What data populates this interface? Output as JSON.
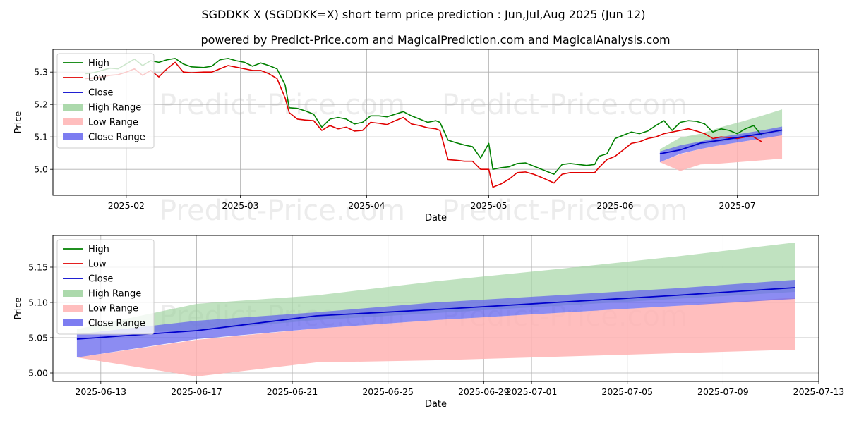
{
  "title_line1": "SGDDKK X (SGDDKK=X) short term price prediction : Jun,Jul,Aug 2025 (Jun 12)",
  "title_line2": "powered by Predict-Price.com and MagicalPrediction.com and MagicalAnalysis.com",
  "watermark": "Predict-Price.com",
  "colors": {
    "high": "#008000",
    "low": "#e00000",
    "close": "#0000cc",
    "high_range": "#9ed29e",
    "low_range": "#ffb3b3",
    "close_range": "#6666ee"
  },
  "chart_data": [
    {
      "type": "line",
      "name": "top-panel",
      "xlabel": "Date",
      "ylabel": "Price",
      "xlim": [
        "2025-01-14",
        "2025-07-21"
      ],
      "ylim": [
        4.92,
        5.37
      ],
      "xticks": [
        {
          "date": "2025-02-01",
          "label": "2025-02"
        },
        {
          "date": "2025-03-01",
          "label": "2025-03"
        },
        {
          "date": "2025-04-01",
          "label": "2025-04"
        },
        {
          "date": "2025-05-01",
          "label": "2025-05"
        },
        {
          "date": "2025-06-01",
          "label": "2025-06"
        },
        {
          "date": "2025-07-01",
          "label": "2025-07"
        }
      ],
      "yticks": [
        {
          "value": 5.0,
          "label": "5.0"
        },
        {
          "value": 5.1,
          "label": "5.1"
        },
        {
          "value": 5.2,
          "label": "5.2"
        },
        {
          "value": 5.3,
          "label": "5.3"
        }
      ],
      "legend": [
        {
          "label": "High",
          "kind": "line",
          "color": "#008000"
        },
        {
          "label": "Low",
          "kind": "line",
          "color": "#e00000"
        },
        {
          "label": "Close",
          "kind": "line",
          "color": "#0000cc"
        },
        {
          "label": "High Range",
          "kind": "patch",
          "color": "#9ed29e"
        },
        {
          "label": "Low Range",
          "kind": "patch",
          "color": "#ffb3b3"
        },
        {
          "label": "Close Range",
          "kind": "patch",
          "color": "#6666ee"
        }
      ],
      "legend_position": "upper-left",
      "grid": true,
      "history_high": [
        [
          "2025-01-22",
          5.295
        ],
        [
          "2025-01-24",
          5.298
        ],
        [
          "2025-01-26",
          5.305
        ],
        [
          "2025-01-28",
          5.312
        ],
        [
          "2025-01-30",
          5.31
        ],
        [
          "2025-02-01",
          5.325
        ],
        [
          "2025-02-03",
          5.34
        ],
        [
          "2025-02-05",
          5.32
        ],
        [
          "2025-02-07",
          5.335
        ],
        [
          "2025-02-09",
          5.33
        ],
        [
          "2025-02-11",
          5.338
        ],
        [
          "2025-02-13",
          5.342
        ],
        [
          "2025-02-15",
          5.325
        ],
        [
          "2025-02-17",
          5.316
        ],
        [
          "2025-02-20",
          5.314
        ],
        [
          "2025-02-22",
          5.318
        ],
        [
          "2025-02-24",
          5.338
        ],
        [
          "2025-02-26",
          5.342
        ],
        [
          "2025-02-28",
          5.335
        ],
        [
          "2025-03-02",
          5.33
        ],
        [
          "2025-03-04",
          5.318
        ],
        [
          "2025-03-06",
          5.328
        ],
        [
          "2025-03-08",
          5.32
        ],
        [
          "2025-03-10",
          5.31
        ],
        [
          "2025-03-12",
          5.26
        ],
        [
          "2025-03-13",
          5.19
        ],
        [
          "2025-03-15",
          5.188
        ],
        [
          "2025-03-17",
          5.18
        ],
        [
          "2025-03-19",
          5.17
        ],
        [
          "2025-03-21",
          5.13
        ],
        [
          "2025-03-23",
          5.155
        ],
        [
          "2025-03-25",
          5.16
        ],
        [
          "2025-03-27",
          5.155
        ],
        [
          "2025-03-29",
          5.14
        ],
        [
          "2025-03-31",
          5.145
        ],
        [
          "2025-04-02",
          5.165
        ],
        [
          "2025-04-04",
          5.165
        ],
        [
          "2025-04-06",
          5.162
        ],
        [
          "2025-04-08",
          5.17
        ],
        [
          "2025-04-10",
          5.178
        ],
        [
          "2025-04-12",
          5.165
        ],
        [
          "2025-04-14",
          5.155
        ],
        [
          "2025-04-16",
          5.145
        ],
        [
          "2025-04-18",
          5.15
        ],
        [
          "2025-04-19",
          5.145
        ],
        [
          "2025-04-21",
          5.09
        ],
        [
          "2025-04-23",
          5.082
        ],
        [
          "2025-04-25",
          5.075
        ],
        [
          "2025-04-27",
          5.07
        ],
        [
          "2025-04-29",
          5.035
        ],
        [
          "2025-05-01",
          5.08
        ],
        [
          "2025-05-02",
          5.0
        ],
        [
          "2025-05-04",
          5.005
        ],
        [
          "2025-05-06",
          5.008
        ],
        [
          "2025-05-08",
          5.018
        ],
        [
          "2025-05-10",
          5.02
        ],
        [
          "2025-05-12",
          5.01
        ],
        [
          "2025-05-14",
          5.0
        ],
        [
          "2025-05-17",
          4.985
        ],
        [
          "2025-05-19",
          5.015
        ],
        [
          "2025-05-21",
          5.018
        ],
        [
          "2025-05-23",
          5.015
        ],
        [
          "2025-05-25",
          5.012
        ],
        [
          "2025-05-27",
          5.015
        ],
        [
          "2025-05-28",
          5.04
        ],
        [
          "2025-05-30",
          5.048
        ],
        [
          "2025-06-01",
          5.095
        ],
        [
          "2025-06-03",
          5.105
        ],
        [
          "2025-06-05",
          5.115
        ],
        [
          "2025-06-07",
          5.11
        ],
        [
          "2025-06-09",
          5.118
        ],
        [
          "2025-06-11",
          5.135
        ],
        [
          "2025-06-13",
          5.15
        ],
        [
          "2025-06-15",
          5.12
        ],
        [
          "2025-06-17",
          5.145
        ],
        [
          "2025-06-19",
          5.15
        ],
        [
          "2025-06-21",
          5.148
        ],
        [
          "2025-06-23",
          5.14
        ],
        [
          "2025-06-25",
          5.115
        ],
        [
          "2025-06-27",
          5.125
        ],
        [
          "2025-06-29",
          5.12
        ],
        [
          "2025-07-01",
          5.11
        ],
        [
          "2025-07-03",
          5.125
        ],
        [
          "2025-07-05",
          5.135
        ],
        [
          "2025-07-07",
          5.105
        ]
      ],
      "history_low": [
        [
          "2025-01-22",
          5.28
        ],
        [
          "2025-01-24",
          5.282
        ],
        [
          "2025-01-26",
          5.285
        ],
        [
          "2025-01-28",
          5.29
        ],
        [
          "2025-01-30",
          5.292
        ],
        [
          "2025-02-01",
          5.3
        ],
        [
          "2025-02-03",
          5.31
        ],
        [
          "2025-02-05",
          5.29
        ],
        [
          "2025-02-07",
          5.305
        ],
        [
          "2025-02-09",
          5.285
        ],
        [
          "2025-02-11",
          5.31
        ],
        [
          "2025-02-13",
          5.33
        ],
        [
          "2025-02-15",
          5.3
        ],
        [
          "2025-02-17",
          5.298
        ],
        [
          "2025-02-20",
          5.3
        ],
        [
          "2025-02-22",
          5.3
        ],
        [
          "2025-02-24",
          5.31
        ],
        [
          "2025-02-26",
          5.32
        ],
        [
          "2025-02-28",
          5.315
        ],
        [
          "2025-03-02",
          5.31
        ],
        [
          "2025-03-04",
          5.305
        ],
        [
          "2025-03-06",
          5.305
        ],
        [
          "2025-03-08",
          5.295
        ],
        [
          "2025-03-10",
          5.28
        ],
        [
          "2025-03-12",
          5.22
        ],
        [
          "2025-03-13",
          5.175
        ],
        [
          "2025-03-15",
          5.155
        ],
        [
          "2025-03-17",
          5.152
        ],
        [
          "2025-03-19",
          5.15
        ],
        [
          "2025-03-21",
          5.12
        ],
        [
          "2025-03-23",
          5.135
        ],
        [
          "2025-03-25",
          5.125
        ],
        [
          "2025-03-27",
          5.13
        ],
        [
          "2025-03-29",
          5.118
        ],
        [
          "2025-03-31",
          5.12
        ],
        [
          "2025-04-02",
          5.145
        ],
        [
          "2025-04-04",
          5.142
        ],
        [
          "2025-04-06",
          5.138
        ],
        [
          "2025-04-08",
          5.15
        ],
        [
          "2025-04-10",
          5.16
        ],
        [
          "2025-04-12",
          5.14
        ],
        [
          "2025-04-14",
          5.135
        ],
        [
          "2025-04-16",
          5.128
        ],
        [
          "2025-04-18",
          5.125
        ],
        [
          "2025-04-19",
          5.12
        ],
        [
          "2025-04-21",
          5.03
        ],
        [
          "2025-04-23",
          5.028
        ],
        [
          "2025-04-25",
          5.025
        ],
        [
          "2025-04-27",
          5.025
        ],
        [
          "2025-04-29",
          5.0
        ],
        [
          "2025-05-01",
          5.0
        ],
        [
          "2025-05-02",
          4.945
        ],
        [
          "2025-05-04",
          4.955
        ],
        [
          "2025-05-06",
          4.97
        ],
        [
          "2025-05-08",
          4.99
        ],
        [
          "2025-05-10",
          4.992
        ],
        [
          "2025-05-12",
          4.985
        ],
        [
          "2025-05-14",
          4.975
        ],
        [
          "2025-05-17",
          4.958
        ],
        [
          "2025-05-19",
          4.985
        ],
        [
          "2025-05-21",
          4.99
        ],
        [
          "2025-05-23",
          4.99
        ],
        [
          "2025-05-25",
          4.99
        ],
        [
          "2025-05-27",
          4.99
        ],
        [
          "2025-05-28",
          5.005
        ],
        [
          "2025-05-30",
          5.03
        ],
        [
          "2025-06-01",
          5.04
        ],
        [
          "2025-06-03",
          5.06
        ],
        [
          "2025-06-05",
          5.08
        ],
        [
          "2025-06-07",
          5.085
        ],
        [
          "2025-06-09",
          5.095
        ],
        [
          "2025-06-11",
          5.1
        ],
        [
          "2025-06-13",
          5.11
        ],
        [
          "2025-06-15",
          5.115
        ],
        [
          "2025-06-17",
          5.12
        ],
        [
          "2025-06-19",
          5.125
        ],
        [
          "2025-06-21",
          5.118
        ],
        [
          "2025-06-23",
          5.11
        ],
        [
          "2025-06-25",
          5.095
        ],
        [
          "2025-06-27",
          5.1
        ],
        [
          "2025-06-29",
          5.098
        ],
        [
          "2025-07-01",
          5.095
        ],
        [
          "2025-07-03",
          5.1
        ],
        [
          "2025-07-05",
          5.1
        ],
        [
          "2025-07-07",
          5.085
        ]
      ]
    },
    {
      "type": "line",
      "name": "bottom-panel",
      "xlabel": "Date",
      "ylabel": "Price",
      "xlim": [
        "2025-06-11",
        "2025-07-13"
      ],
      "ylim": [
        4.988,
        5.195
      ],
      "xticks": [
        {
          "date": "2025-06-13",
          "label": "2025-06-13"
        },
        {
          "date": "2025-06-17",
          "label": "2025-06-17"
        },
        {
          "date": "2025-06-21",
          "label": "2025-06-21"
        },
        {
          "date": "2025-06-25",
          "label": "2025-06-25"
        },
        {
          "date": "2025-06-29",
          "label": "2025-06-29"
        },
        {
          "date": "2025-07-01",
          "label": "2025-07-01"
        },
        {
          "date": "2025-07-05",
          "label": "2025-07-05"
        },
        {
          "date": "2025-07-09",
          "label": "2025-07-09"
        },
        {
          "date": "2025-07-13",
          "label": "2025-07-13"
        }
      ],
      "yticks": [
        {
          "value": 5.0,
          "label": "5.00"
        },
        {
          "value": 5.05,
          "label": "5.05"
        },
        {
          "value": 5.1,
          "label": "5.10"
        },
        {
          "value": 5.15,
          "label": "5.15"
        }
      ],
      "legend": [
        {
          "label": "High",
          "kind": "line",
          "color": "#008000"
        },
        {
          "label": "Low",
          "kind": "line",
          "color": "#e00000"
        },
        {
          "label": "Close",
          "kind": "line",
          "color": "#0000cc"
        },
        {
          "label": "High Range",
          "kind": "patch",
          "color": "#9ed29e"
        },
        {
          "label": "Low Range",
          "kind": "patch",
          "color": "#ffb3b3"
        },
        {
          "label": "Close Range",
          "kind": "patch",
          "color": "#6666ee"
        }
      ],
      "legend_position": "upper-left",
      "grid": true,
      "forecast": {
        "dates": [
          "2025-06-12",
          "2025-06-17",
          "2025-06-22",
          "2025-06-27",
          "2025-07-02",
          "2025-07-07",
          "2025-07-12"
        ],
        "close": [
          5.048,
          5.06,
          5.081,
          5.09,
          5.1,
          5.11,
          5.121
        ],
        "high_range": [
          [
            5.055,
            5.062
          ],
          [
            5.06,
            5.098
          ],
          [
            5.075,
            5.11
          ],
          [
            5.085,
            5.13
          ],
          [
            5.095,
            5.147
          ],
          [
            5.105,
            5.165
          ],
          [
            5.115,
            5.185
          ]
        ],
        "low_range": [
          [
            5.022,
            5.022
          ],
          [
            4.995,
            5.047
          ],
          [
            5.015,
            5.063
          ],
          [
            5.018,
            5.075
          ],
          [
            5.023,
            5.085
          ],
          [
            5.028,
            5.095
          ],
          [
            5.033,
            5.107
          ]
        ],
        "close_range": [
          [
            5.022,
            5.055
          ],
          [
            5.048,
            5.074
          ],
          [
            5.063,
            5.086
          ],
          [
            5.075,
            5.1
          ],
          [
            5.085,
            5.11
          ],
          [
            5.095,
            5.12
          ],
          [
            5.105,
            5.132
          ]
        ]
      }
    }
  ]
}
